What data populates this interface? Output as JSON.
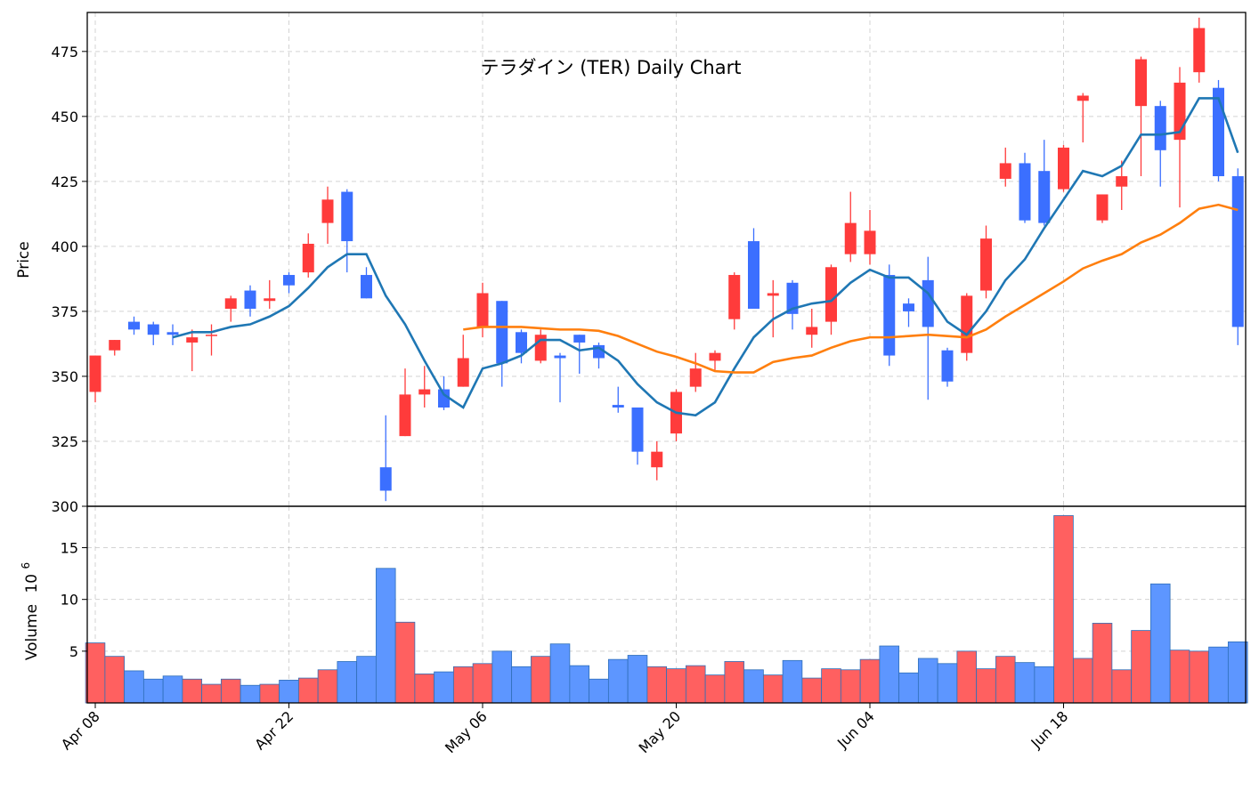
{
  "chart_data": {
    "type": "candlestick",
    "title": "テラダイン (TER) Daily Chart",
    "ylabel_price": "Price",
    "ylabel_volume": "Volume",
    "volume_multiplier_text": "10",
    "volume_multiplier_exp": "6",
    "price_ylim": [
      300,
      490
    ],
    "price_yticks": [
      300,
      325,
      350,
      375,
      400,
      425,
      450,
      475
    ],
    "volume_ylim": [
      0,
      19
    ],
    "volume_yticks": [
      5,
      10,
      15
    ],
    "x_ticks": [
      {
        "index": 0,
        "label": "Apr 08"
      },
      {
        "index": 10,
        "label": "Apr 22"
      },
      {
        "index": 20,
        "label": "May 06"
      },
      {
        "index": 30,
        "label": "May 20"
      },
      {
        "index": 40,
        "label": "Jun 04"
      },
      {
        "index": 50,
        "label": "Jun 18"
      }
    ],
    "grid": true,
    "up_color": "#ff3b3b",
    "down_color": "#3b6fff",
    "vol_up_color": "#ff6060",
    "vol_down_color": "#5d96ff",
    "ma_colors": [
      "#1f77b4",
      "#ff7f0e"
    ],
    "ohlc": [
      [
        344,
        358,
        340,
        358
      ],
      [
        360,
        364,
        358,
        364
      ],
      [
        371,
        373,
        366,
        368
      ],
      [
        370,
        371,
        362,
        366
      ],
      [
        367,
        370,
        362,
        366
      ],
      [
        363,
        368,
        352,
        365
      ],
      [
        366,
        370,
        358,
        366
      ],
      [
        376,
        381,
        371,
        380
      ],
      [
        383,
        385,
        373,
        376
      ],
      [
        379,
        387,
        376,
        380
      ],
      [
        389,
        390,
        382,
        385
      ],
      [
        390,
        405,
        388,
        401
      ],
      [
        409,
        423,
        401,
        418
      ],
      [
        421,
        422,
        390,
        402
      ],
      [
        389,
        392,
        380,
        380
      ],
      [
        315,
        335,
        302,
        306
      ],
      [
        327,
        353,
        327,
        343
      ],
      [
        343,
        354,
        338,
        345
      ],
      [
        345,
        350,
        337,
        338
      ],
      [
        346,
        366,
        346,
        357
      ],
      [
        369,
        386,
        365,
        382
      ],
      [
        379,
        379,
        346,
        355
      ],
      [
        367,
        368,
        355,
        359
      ],
      [
        356,
        368,
        355,
        366
      ],
      [
        358,
        359,
        340,
        357
      ],
      [
        366,
        366,
        351,
        363
      ],
      [
        362,
        363,
        353,
        357
      ],
      [
        339,
        346,
        336,
        338
      ],
      [
        338,
        338,
        316,
        321
      ],
      [
        315,
        325,
        310,
        321
      ],
      [
        328,
        345,
        325,
        344
      ],
      [
        346,
        359,
        344,
        353
      ],
      [
        356,
        360,
        352,
        359
      ],
      [
        372,
        390,
        368,
        389
      ],
      [
        402,
        407,
        376,
        376
      ],
      [
        381,
        387,
        365,
        382
      ],
      [
        386,
        387,
        368,
        374
      ],
      [
        366,
        376,
        361,
        369
      ],
      [
        371,
        393,
        366,
        392
      ],
      [
        397,
        421,
        394,
        409
      ],
      [
        397,
        414,
        393,
        406
      ],
      [
        389,
        393,
        354,
        358
      ],
      [
        378,
        380,
        369,
        375
      ],
      [
        387,
        396,
        341,
        369
      ],
      [
        360,
        361,
        346,
        348
      ],
      [
        359,
        382,
        356,
        381
      ],
      [
        383,
        408,
        380,
        403
      ],
      [
        426,
        438,
        423,
        432
      ],
      [
        432,
        436,
        409,
        410
      ],
      [
        429,
        441,
        408,
        409
      ],
      [
        422,
        439,
        421,
        438
      ],
      [
        456,
        459,
        440,
        458
      ],
      [
        410,
        420,
        409,
        420
      ],
      [
        423,
        433,
        414,
        427
      ],
      [
        454,
        473,
        427,
        472
      ],
      [
        454,
        456,
        423,
        437
      ],
      [
        441,
        469,
        415,
        463
      ],
      [
        467,
        488,
        463,
        484
      ],
      [
        461,
        464,
        425,
        427
      ],
      [
        427,
        430,
        362,
        369
      ]
    ],
    "volumes": [
      5.8,
      4.5,
      3.1,
      2.3,
      2.6,
      2.3,
      1.8,
      2.3,
      1.7,
      1.8,
      2.2,
      2.4,
      3.2,
      4.0,
      4.5,
      13.0,
      7.8,
      2.8,
      3.0,
      3.5,
      3.8,
      5.0,
      3.5,
      4.5,
      5.7,
      3.6,
      2.3,
      4.2,
      4.6,
      3.5,
      3.3,
      3.6,
      2.7,
      4.0,
      3.2,
      2.7,
      4.1,
      2.4,
      3.3,
      3.2,
      4.2,
      5.5,
      2.9,
      4.3,
      3.8,
      5.0,
      3.3,
      4.5,
      3.9,
      3.5,
      18.1,
      4.3,
      7.7,
      3.2,
      7.0,
      11.5,
      5.1,
      5.0,
      5.4,
      5.9
    ],
    "ma_short": [
      null,
      null,
      null,
      null,
      365,
      367,
      367,
      369,
      370,
      373,
      377,
      384,
      392,
      397,
      397,
      381,
      370,
      356,
      343,
      338,
      353,
      355,
      358,
      364,
      364,
      360,
      361,
      356,
      347,
      340,
      336,
      335,
      340,
      353,
      365,
      372,
      376,
      378,
      379,
      386,
      391,
      388,
      388,
      382,
      371,
      366,
      375,
      387,
      395,
      407,
      418,
      429,
      427,
      431,
      443,
      443,
      444,
      457,
      457,
      436
    ],
    "ma_long": [
      null,
      null,
      null,
      null,
      null,
      null,
      null,
      null,
      null,
      null,
      null,
      null,
      null,
      null,
      null,
      null,
      null,
      null,
      null,
      368,
      369,
      369,
      369,
      368.5,
      368,
      368,
      367.5,
      365.5,
      362.5,
      359.5,
      357.5,
      355,
      352,
      351.5,
      351.5,
      355.5,
      357,
      358,
      361,
      363.5,
      365,
      365,
      365.5,
      366,
      365.5,
      365,
      368,
      373,
      377.5,
      382,
      386.5,
      391.5,
      394.5,
      397,
      401.5,
      404.5,
      409,
      414.5,
      416,
      414
    ]
  }
}
